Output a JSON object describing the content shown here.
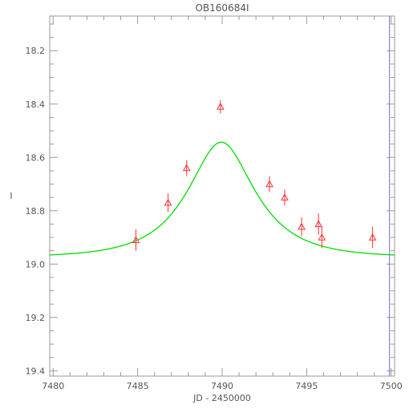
{
  "chart_data": {
    "type": "scatter",
    "title": "OB160684I",
    "xlabel": "JD - 2450000",
    "ylabel": "I",
    "xlim": [
      7479.8,
      7500.2
    ],
    "ylim": [
      19.42,
      18.07
    ],
    "y_inverted": true,
    "grid": false,
    "x_ticks": [
      7480,
      7485,
      7490,
      7495,
      7500
    ],
    "y_ticks": [
      18.2,
      18.4,
      18.6,
      18.8,
      19.0,
      19.2,
      19.4
    ],
    "series": [
      {
        "kind": "points",
        "marker": "open-triangle",
        "color": "#ff3030",
        "points": [
          {
            "x": 7484.9,
            "y": 18.91,
            "err": 0.04
          },
          {
            "x": 7486.8,
            "y": 18.77,
            "err": 0.035
          },
          {
            "x": 7487.9,
            "y": 18.64,
            "err": 0.03
          },
          {
            "x": 7489.9,
            "y": 18.41,
            "err": 0.025
          },
          {
            "x": 7492.8,
            "y": 18.7,
            "err": 0.03
          },
          {
            "x": 7493.7,
            "y": 18.75,
            "err": 0.03
          },
          {
            "x": 7494.7,
            "y": 18.86,
            "err": 0.035
          },
          {
            "x": 7495.7,
            "y": 18.85,
            "err": 0.04
          },
          {
            "x": 7495.9,
            "y": 18.9,
            "err": 0.04
          },
          {
            "x": 7498.9,
            "y": 18.9,
            "err": 0.04
          }
        ]
      },
      {
        "kind": "model-curve",
        "color": "#00dd00",
        "model": "pspl",
        "t0": 7489.95,
        "tE": 3.5,
        "u0": 0.55,
        "baseline": 18.975,
        "fs": 0.48
      }
    ],
    "vertical_line": {
      "x": 7499.9,
      "color": "#6a6adc"
    }
  }
}
